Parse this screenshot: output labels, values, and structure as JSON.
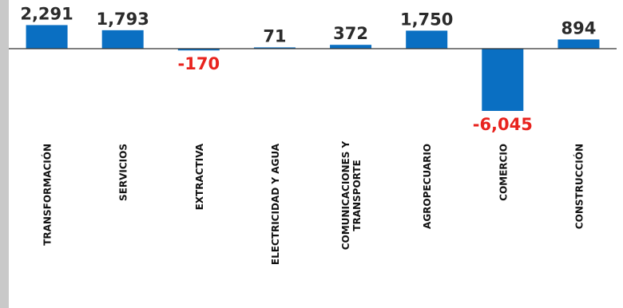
{
  "chart_data": {
    "type": "bar",
    "title": "",
    "xlabel": "",
    "ylabel": "",
    "categories": [
      "TRANSFORMACIÓN",
      "SERVICIOS",
      "EXTRACTIVA",
      "ELECTRICIDAD Y AGUA",
      "COMUNICACIONES Y TRANSPORTE",
      "AGROPECUARIO",
      "COMERCIO",
      "CONSTRUCCIÓN"
    ],
    "values": [
      2291,
      1793,
      -170,
      71,
      372,
      1750,
      -6045,
      894
    ],
    "value_labels": [
      "2,291",
      "1,793",
      "-170",
      "71",
      "372",
      "1,750",
      "-6,045",
      "894"
    ],
    "category_lines": [
      [
        "TRANSFORMACIÓN"
      ],
      [
        "SERVICIOS"
      ],
      [
        "EXTRACTIVA"
      ],
      [
        "ELECTRICIDAD Y AGUA"
      ],
      [
        "COMUNICACIONES Y",
        "TRANSPORTE"
      ],
      [
        "AGROPECUARIO"
      ],
      [
        "COMERCIO"
      ],
      [
        "CONSTRUCCIÓN"
      ]
    ],
    "grid": false,
    "legend": "none"
  },
  "colors": {
    "bar": "#0a6fc2",
    "positive_label": "#2b2b2b",
    "negative_label": "#e8231e",
    "axis": "#333333",
    "left_strip": "#c9c9c9",
    "category_text": "#111111"
  }
}
